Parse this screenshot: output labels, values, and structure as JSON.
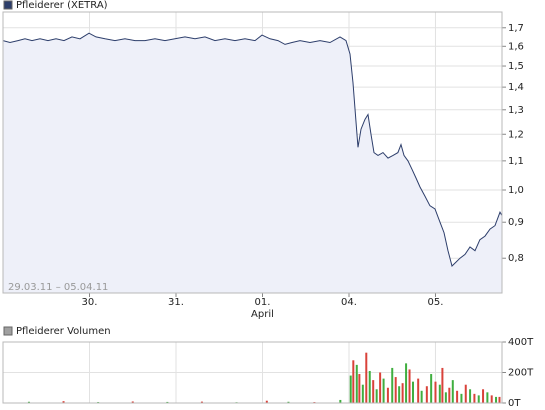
{
  "chart_data": [
    {
      "type": "line",
      "title": "Pfleiderer (XETRA)",
      "date_range": "29.03.11 – 05.04.11",
      "log_scale": true,
      "grid": true,
      "line_color": "#2d3e6b",
      "fill_color": "#eef0f9",
      "legend_color": "#2d3e6b",
      "xlim": [
        0,
        5.769
      ],
      "ylim": [
        0.714,
        1.79
      ],
      "xticks": [
        {
          "value": 1,
          "label": "30."
        },
        {
          "value": 2,
          "label": "31."
        },
        {
          "value": 3,
          "label": "01."
        },
        {
          "value": 4,
          "label": "04."
        },
        {
          "value": 5,
          "label": "05."
        }
      ],
      "annotations": [
        {
          "x": 3,
          "text": "April"
        }
      ],
      "yticks": [
        {
          "value": 0.8,
          "label": "0,8"
        },
        {
          "value": 0.9,
          "label": "0,9"
        },
        {
          "value": 1.0,
          "label": "1,0"
        },
        {
          "value": 1.1,
          "label": "1,1"
        },
        {
          "value": 1.2,
          "label": "1,2"
        },
        {
          "value": 1.3,
          "label": "1,3"
        },
        {
          "value": 1.4,
          "label": "1,4"
        },
        {
          "value": 1.5,
          "label": "1,5"
        },
        {
          "value": 1.6,
          "label": "1,6"
        },
        {
          "value": 1.7,
          "label": "1,7"
        }
      ],
      "x": [
        0,
        0.081,
        0.173,
        0.254,
        0.335,
        0.428,
        0.52,
        0.613,
        0.705,
        0.798,
        0.89,
        0.994,
        1.075,
        1.179,
        1.295,
        1.41,
        1.526,
        1.642,
        1.757,
        1.873,
        1.988,
        2.104,
        2.22,
        2.335,
        2.451,
        2.566,
        2.682,
        2.798,
        2.913,
        2.994,
        3.087,
        3.179,
        3.26,
        3.341,
        3.434,
        3.549,
        3.665,
        3.78,
        3.896,
        3.965,
        4.012,
        4.046,
        4.081,
        4.104,
        4.139,
        4.185,
        4.22,
        4.254,
        4.289,
        4.335,
        4.393,
        4.451,
        4.509,
        4.566,
        4.601,
        4.636,
        4.682,
        4.728,
        4.775,
        4.821,
        4.879,
        4.936,
        4.994,
        5.052,
        5.098,
        5.145,
        5.191,
        5.237,
        5.283,
        5.341,
        5.399,
        5.457,
        5.514,
        5.572,
        5.63,
        5.688,
        5.746,
        5.769
      ],
      "values": [
        1.63,
        1.62,
        1.63,
        1.64,
        1.63,
        1.64,
        1.63,
        1.64,
        1.63,
        1.65,
        1.64,
        1.67,
        1.65,
        1.64,
        1.63,
        1.64,
        1.63,
        1.63,
        1.64,
        1.63,
        1.64,
        1.65,
        1.64,
        1.65,
        1.63,
        1.64,
        1.63,
        1.64,
        1.63,
        1.66,
        1.64,
        1.63,
        1.61,
        1.62,
        1.63,
        1.62,
        1.63,
        1.62,
        1.65,
        1.63,
        1.56,
        1.42,
        1.25,
        1.15,
        1.22,
        1.26,
        1.28,
        1.2,
        1.13,
        1.12,
        1.13,
        1.11,
        1.12,
        1.13,
        1.16,
        1.12,
        1.1,
        1.07,
        1.04,
        1.01,
        0.98,
        0.95,
        0.94,
        0.9,
        0.87,
        0.82,
        0.78,
        0.79,
        0.8,
        0.81,
        0.83,
        0.82,
        0.85,
        0.86,
        0.88,
        0.89,
        0.93,
        0.92
      ]
    },
    {
      "type": "bar",
      "title": "Pfleiderer Volumen",
      "grid": true,
      "legend_color": "#a0a0a0",
      "xlim": [
        0,
        5.769
      ],
      "ylim": [
        0,
        400000
      ],
      "xticks": [
        1,
        2,
        3,
        4,
        5
      ],
      "yticks": [
        {
          "value": 0,
          "label": "0T"
        },
        {
          "value": 200000,
          "label": "200T"
        },
        {
          "value": 400000,
          "label": "400T"
        }
      ],
      "series": [
        {
          "color": "#3fae3f",
          "x": [
            0.3,
            1.1,
            1.9,
            2.7,
            3.3,
            3.9,
            4.02,
            4.09,
            4.16,
            4.24,
            4.32,
            4.4,
            4.5,
            4.58,
            4.66,
            4.74,
            4.84,
            4.95,
            5.05,
            5.12,
            5.2,
            5.3,
            5.4,
            5.5,
            5.6,
            5.7
          ],
          "values": [
            8000,
            6000,
            7000,
            5000,
            8000,
            20000,
            180000,
            250000,
            120000,
            210000,
            90000,
            160000,
            230000,
            110000,
            260000,
            140000,
            80000,
            190000,
            120000,
            70000,
            150000,
            60000,
            90000,
            50000,
            70000,
            40000
          ]
        },
        {
          "color": "#d9423a",
          "x": [
            0.7,
            1.5,
            2.3,
            3.05,
            3.6,
            4.05,
            4.12,
            4.2,
            4.28,
            4.36,
            4.45,
            4.54,
            4.62,
            4.7,
            4.8,
            4.9,
            5.0,
            5.08,
            5.16,
            5.25,
            5.35,
            5.45,
            5.55,
            5.65,
            5.74
          ],
          "values": [
            12000,
            10000,
            9000,
            15000,
            6000,
            280000,
            190000,
            330000,
            150000,
            200000,
            100000,
            170000,
            130000,
            220000,
            160000,
            110000,
            140000,
            230000,
            100000,
            80000,
            120000,
            60000,
            90000,
            50000,
            40000
          ]
        }
      ]
    }
  ]
}
